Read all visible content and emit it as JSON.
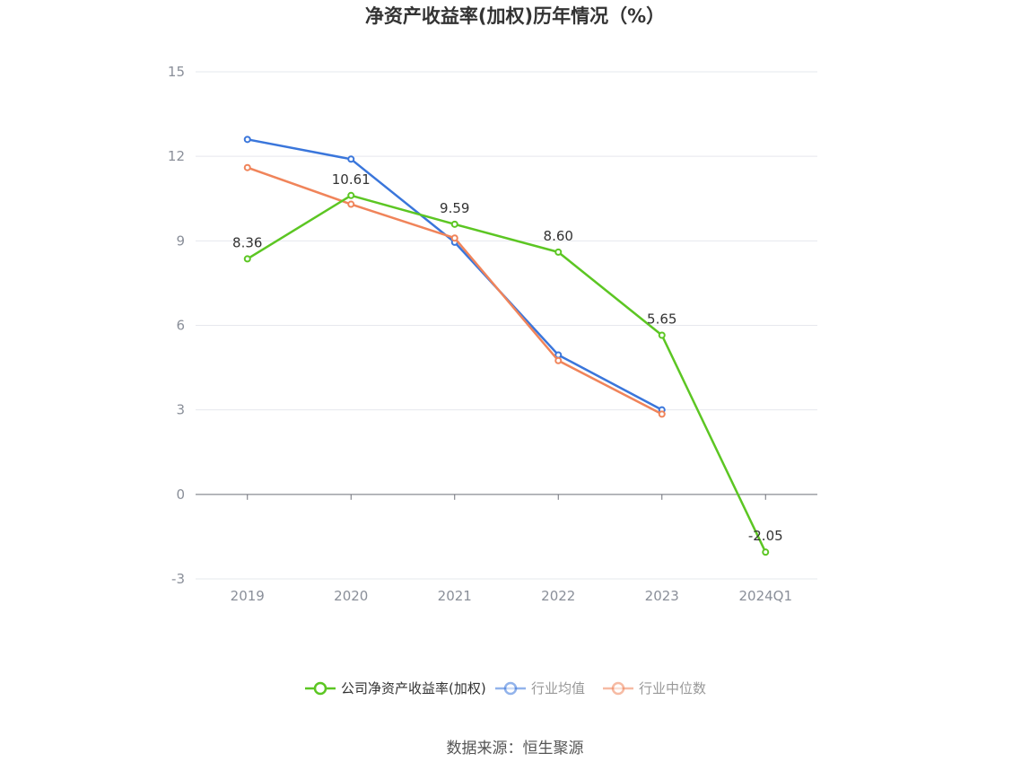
{
  "chart_data": {
    "type": "line",
    "title": "净资产收益率(加权)历年情况（%）",
    "categories": [
      "2019",
      "2020",
      "2021",
      "2022",
      "2023",
      "2024Q1"
    ],
    "ylim": [
      -3,
      15
    ],
    "yticks": [
      -3,
      0,
      3,
      6,
      9,
      12,
      15
    ],
    "grid": true,
    "legend_position": "bottom",
    "series": [
      {
        "name": "公司净资产收益率(加权)",
        "color": "#5cc623",
        "values": [
          8.36,
          10.61,
          9.59,
          8.6,
          5.65,
          -2.05
        ],
        "labels": [
          "8.36",
          "10.61",
          "9.59",
          "8.60",
          "5.65",
          "-2.05"
        ],
        "legend_active": true
      },
      {
        "name": "行业均值",
        "color": "#3a76db",
        "values": [
          12.6,
          11.9,
          8.95,
          4.95,
          3.0,
          null
        ],
        "legend_active": false
      },
      {
        "name": "行业中位数",
        "color": "#f0845a",
        "values": [
          11.6,
          10.3,
          9.1,
          4.75,
          2.85,
          null
        ],
        "legend_active": false
      }
    ],
    "source": "数据来源：恒生聚源"
  }
}
